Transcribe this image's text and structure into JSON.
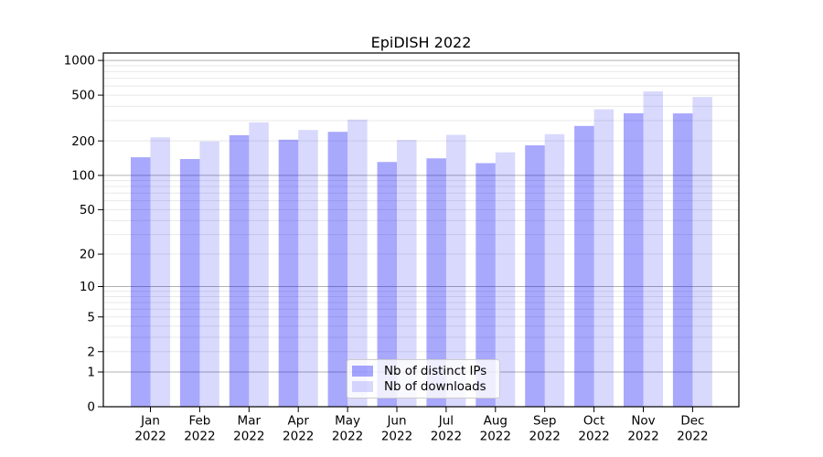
{
  "chart_data": {
    "type": "bar",
    "title": "EpiDISH 2022",
    "categories": [
      "Jan",
      "Feb",
      "Mar",
      "Apr",
      "May",
      "Jun",
      "Jul",
      "Aug",
      "Sep",
      "Oct",
      "Nov",
      "Dec"
    ],
    "year": "2022",
    "series": [
      {
        "name": "Nb of distinct IPs",
        "color": "rgba(0,0,250,0.34)",
        "values": [
          144,
          139,
          224,
          205,
          240,
          131,
          141,
          128,
          183,
          270,
          348,
          347
        ]
      },
      {
        "name": "Nb of downloads",
        "color": "rgba(0,0,250,0.148)",
        "values": [
          215,
          198,
          290,
          249,
          307,
          204,
          226,
          159,
          229,
          377,
          539,
          482
        ]
      }
    ],
    "yscale": "log1p",
    "ylim": [
      0,
      1160
    ],
    "yticks": [
      0,
      1,
      2,
      5,
      10,
      20,
      50,
      100,
      200,
      500,
      1000
    ],
    "grid": {
      "on": true,
      "major_values": [
        1,
        10,
        100,
        1000
      ],
      "minor_values": [
        2,
        3,
        4,
        5,
        6,
        7,
        8,
        9,
        20,
        30,
        40,
        50,
        60,
        70,
        80,
        90,
        200,
        300,
        400,
        500,
        600,
        700,
        800,
        900
      ],
      "major_color": "#b0b0b0",
      "minor_color": "#e8e8e8"
    },
    "axis_color": "#000000",
    "background_color": "#ffffff",
    "legend": {
      "position": "lower-center",
      "labels": [
        "Nb of distinct IPs",
        "Nb of downloads"
      ]
    }
  }
}
